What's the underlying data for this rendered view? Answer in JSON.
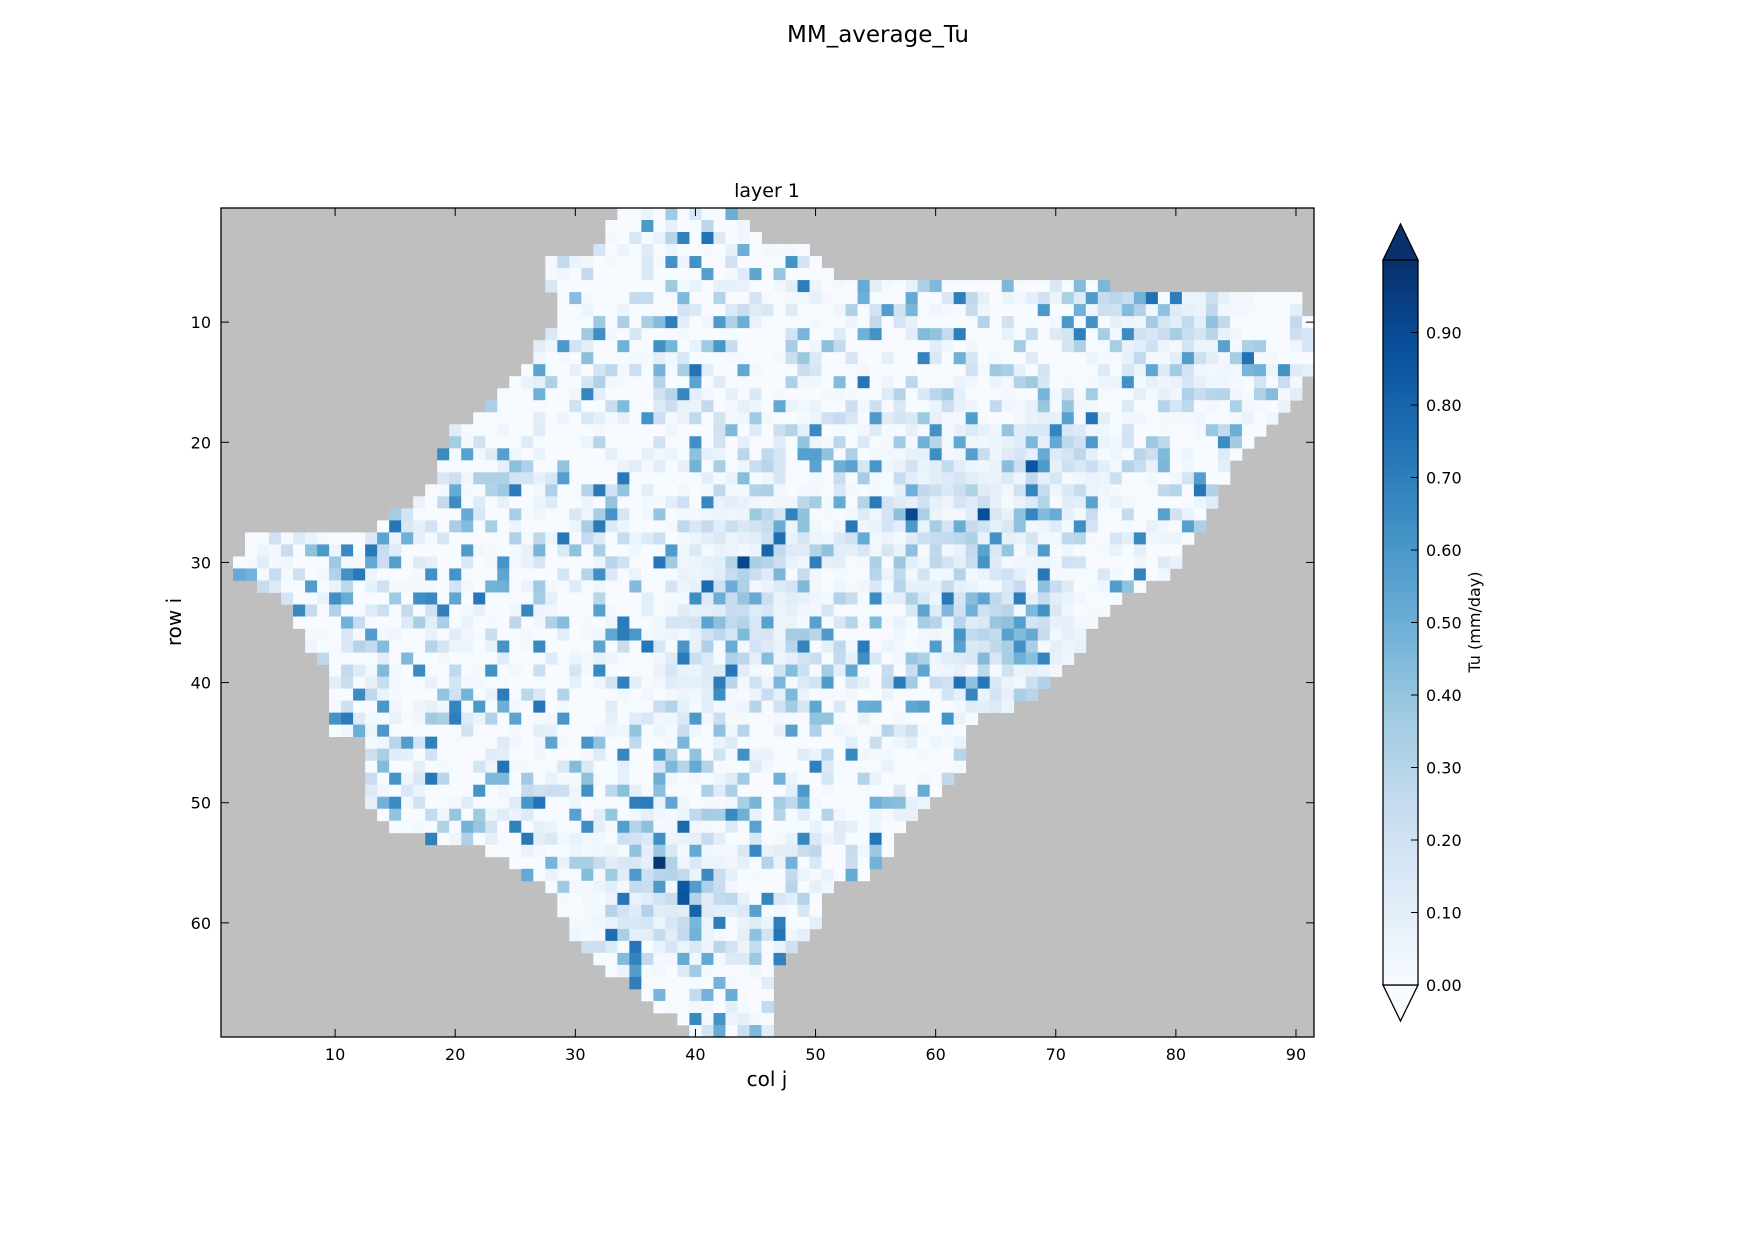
{
  "chart_data": {
    "type": "heatmap",
    "title": "MM_average_Tu",
    "subtitle": "layer 1",
    "xlabel": "col j",
    "ylabel": "row i",
    "xlim": [
      0.5,
      91.5
    ],
    "ylim": [
      69.5,
      0.5
    ],
    "x_ticks": [
      10,
      20,
      30,
      40,
      50,
      60,
      70,
      80,
      90
    ],
    "y_ticks": [
      10,
      20,
      30,
      40,
      50,
      60
    ],
    "grid": false,
    "no_data_color": "#bfbfbf",
    "colorbar": {
      "label": "Tu (mm/day)",
      "min": 0.0,
      "max": 1.0,
      "extend": "both",
      "ticks": [
        "0.00",
        "0.10",
        "0.20",
        "0.30",
        "0.40",
        "0.50",
        "0.60",
        "0.70",
        "0.80",
        "0.90"
      ],
      "colormap": [
        "#f7fbff",
        "#deebf7",
        "#c6dbef",
        "#9ecae1",
        "#6baed6",
        "#4292c6",
        "#2171b5",
        "#08519c",
        "#08306b"
      ]
    },
    "domain_rows": [
      [
        1,
        34,
        43
      ],
      [
        2,
        33,
        44
      ],
      [
        3,
        33,
        45
      ],
      [
        4,
        32,
        49
      ],
      [
        5,
        28,
        50
      ],
      [
        6,
        28,
        51
      ],
      [
        7,
        28,
        74
      ],
      [
        8,
        29,
        90
      ],
      [
        9,
        29,
        90
      ],
      [
        10,
        29,
        91
      ],
      [
        11,
        28,
        91
      ],
      [
        12,
        27,
        91
      ],
      [
        13,
        27,
        91
      ],
      [
        14,
        26,
        91
      ],
      [
        15,
        25,
        90
      ],
      [
        16,
        24,
        90
      ],
      [
        17,
        23,
        89
      ],
      [
        18,
        22,
        88
      ],
      [
        19,
        20,
        87
      ],
      [
        20,
        20,
        86
      ],
      [
        21,
        19,
        85
      ],
      [
        22,
        19,
        84
      ],
      [
        23,
        19,
        84
      ],
      [
        24,
        18,
        83
      ],
      [
        25,
        17,
        83
      ],
      [
        26,
        15,
        82
      ],
      [
        27,
        14,
        82
      ],
      [
        28,
        3,
        81
      ],
      [
        29,
        3,
        80
      ],
      [
        30,
        2,
        80
      ],
      [
        31,
        2,
        79
      ],
      [
        32,
        4,
        77
      ],
      [
        33,
        6,
        75
      ],
      [
        34,
        7,
        74
      ],
      [
        35,
        7,
        73
      ],
      [
        36,
        8,
        72
      ],
      [
        37,
        8,
        72
      ],
      [
        38,
        9,
        71
      ],
      [
        39,
        10,
        70
      ],
      [
        40,
        10,
        69
      ],
      [
        41,
        10,
        68
      ],
      [
        42,
        10,
        66
      ],
      [
        43,
        10,
        63
      ],
      [
        44,
        10,
        62
      ],
      [
        45,
        13,
        62
      ],
      [
        46,
        13,
        62
      ],
      [
        47,
        13,
        62
      ],
      [
        48,
        13,
        61
      ],
      [
        49,
        13,
        60
      ],
      [
        50,
        13,
        59
      ],
      [
        51,
        14,
        58
      ],
      [
        52,
        15,
        57
      ],
      [
        53,
        18,
        56
      ],
      [
        54,
        23,
        56
      ],
      [
        55,
        25,
        55
      ],
      [
        56,
        26,
        54
      ],
      [
        57,
        28,
        51
      ],
      [
        58,
        29,
        50
      ],
      [
        59,
        29,
        50
      ],
      [
        60,
        30,
        50
      ],
      [
        61,
        30,
        49
      ],
      [
        62,
        31,
        48
      ],
      [
        63,
        32,
        47
      ],
      [
        64,
        33,
        46
      ],
      [
        65,
        35,
        46
      ],
      [
        66,
        36,
        46
      ],
      [
        67,
        37,
        46
      ],
      [
        68,
        39,
        46
      ],
      [
        69,
        40,
        46
      ]
    ]
  }
}
